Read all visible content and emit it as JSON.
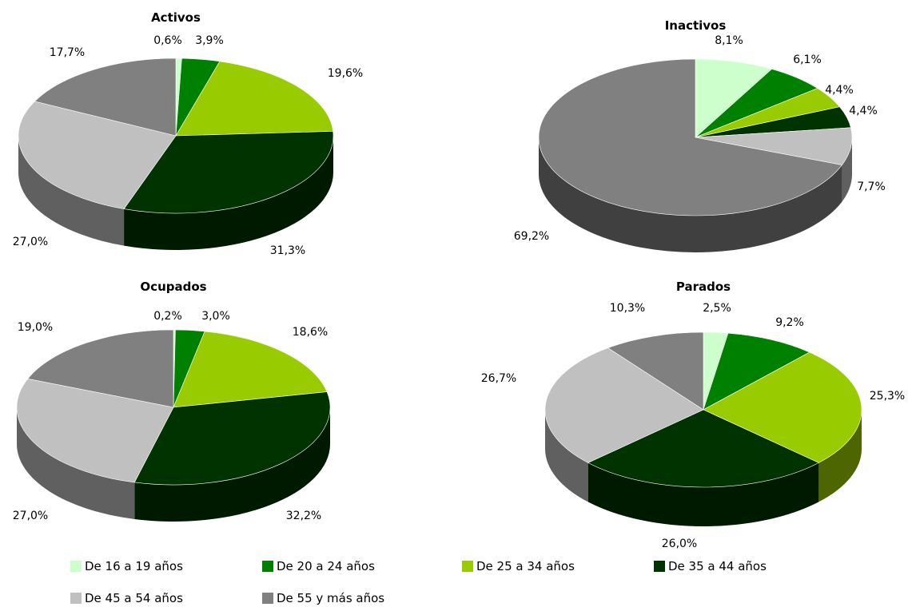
{
  "legend": {
    "items": [
      {
        "label": "De 16 a 19 años",
        "color": "#ccffcc"
      },
      {
        "label": "De 20 a 24 años",
        "color": "#008000"
      },
      {
        "label": "De 25 a 34 años",
        "color": "#99cc00"
      },
      {
        "label": "De 35 a 44 años",
        "color": "#003300"
      },
      {
        "label": "De 45 a 54 años",
        "color": "#c0c0c0"
      },
      {
        "label": "De 55 y más años",
        "color": "#808080"
      }
    ]
  },
  "chart_data": [
    {
      "type": "pie",
      "title": "Activos",
      "categories": [
        "De 16 a 19 años",
        "De 20 a 24 años",
        "De 25 a 34 años",
        "De 35 a 44 años",
        "De 45 a 54 años",
        "De 55 y más años"
      ],
      "values": [
        0.6,
        3.9,
        19.6,
        31.3,
        27.0,
        17.7
      ],
      "labels": [
        "0,6%",
        "3,9%",
        "19,6%",
        "31,3%",
        "27,0%",
        "17,7%"
      ]
    },
    {
      "type": "pie",
      "title": "Inactivos",
      "categories": [
        "De 16 a 19 años",
        "De 20 a 24 años",
        "De 25 a 34 años",
        "De 35 a 44 años",
        "De 45 a 54 años",
        "De 55 y más años"
      ],
      "values": [
        8.1,
        6.1,
        4.4,
        4.4,
        7.7,
        69.2
      ],
      "labels": [
        "8,1%",
        "6,1%",
        "4,4%",
        "4,4%",
        "7,7%",
        "69,2%"
      ]
    },
    {
      "type": "pie",
      "title": "Ocupados",
      "categories": [
        "De 16 a 19 años",
        "De 20 a 24 años",
        "De 25 a 34 años",
        "De 35 a 44 años",
        "De 45 a 54 años",
        "De 55 y más años"
      ],
      "values": [
        0.2,
        3.0,
        18.6,
        32.2,
        27.0,
        19.0
      ],
      "labels": [
        "0,2%",
        "3,0%",
        "18,6%",
        "32,2%",
        "27,0%",
        "19,0%"
      ]
    },
    {
      "type": "pie",
      "title": "Parados",
      "categories": [
        "De 16 a 19 años",
        "De 20 a 24 años",
        "De 25 a 34 años",
        "De 35 a 44 años",
        "De 45 a 54 años",
        "De 55 y más años"
      ],
      "values": [
        2.5,
        9.2,
        25.3,
        26.0,
        26.7,
        10.3
      ],
      "labels": [
        "2,5%",
        "9,2%",
        "25,3%",
        "26,0%",
        "26,7%",
        "10,3%"
      ]
    }
  ]
}
